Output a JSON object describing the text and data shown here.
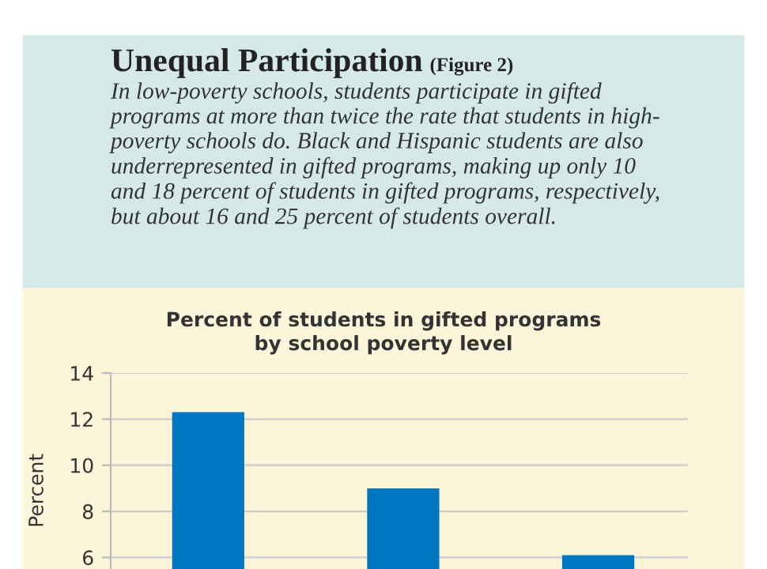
{
  "chart_data": {
    "type": "bar",
    "title": "Unequal Participation",
    "subtitle": "In low-poverty schools, students participate in gifted\nprograms at more than twice the rate that students in high-\npoverty schools do. Black and Hispanic students are also\nunderrepresented in gifted programs, making up only 10\nand 18 percent of students in gifted programs, respectively,\nbut about 16 and 25 percent of students overall.",
    "annotations": [
      "(Figure 2)",
      "Percent of students in gifted programs\nby school poverty level"
    ],
    "ylabel": "Percent",
    "categories": [
      null,
      null,
      null
    ],
    "values": [
      12.3,
      9.0,
      6.1
    ],
    "color": "#0077c0",
    "ylim": [
      5.5,
      14
    ],
    "yticks": [
      6,
      8,
      10,
      12,
      14
    ],
    "grid": "y"
  }
}
